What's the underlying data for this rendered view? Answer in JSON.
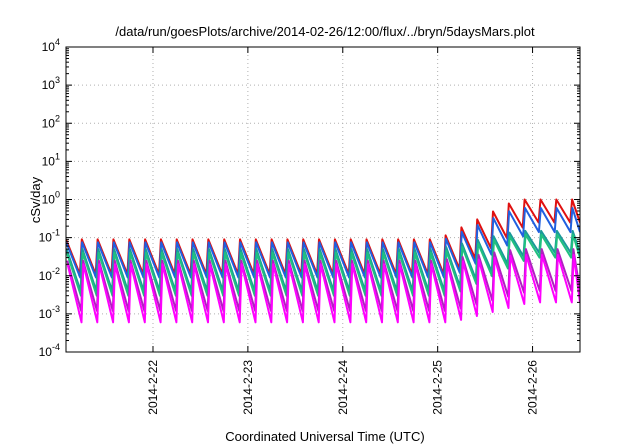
{
  "chart_data": {
    "type": "line",
    "title": "/data/run/goesPlots/archive/2014-02-26/12:00/flux/../bryn/5daysMars.plot",
    "xlabel": "Coordinated Universal Time (UTC)",
    "ylabel": "cSv/day",
    "yscale": "log",
    "ylim": [
      0.0001,
      10000
    ],
    "xlim": [
      "2014-02-21T02:00",
      "2014-02-26T12:00"
    ],
    "grid": true,
    "legend": "none",
    "x_ticks": [
      "2014-2-22",
      "2014-2-23",
      "2014-2-24",
      "2014-2-25",
      "2014-2-26"
    ],
    "y_ticks": [
      {
        "base": "10",
        "exp": "-4"
      },
      {
        "base": "10",
        "exp": "-3"
      },
      {
        "base": "10",
        "exp": "-2"
      },
      {
        "base": "10",
        "exp": "-1"
      },
      {
        "base": "10",
        "exp": "0"
      },
      {
        "base": "10",
        "exp": "1"
      },
      {
        "base": "10",
        "exp": "2"
      },
      {
        "base": "10",
        "exp": "3"
      },
      {
        "base": "10",
        "exp": "4"
      }
    ],
    "cycle_period_hours": 4,
    "series": [
      {
        "color": "#e01010",
        "peak_quiet": 0.09,
        "trough_quiet": 0.011,
        "peak_active": 1.0,
        "trough_active": 0.25
      },
      {
        "color": "#2060e0",
        "peak_quiet": 0.075,
        "trough_quiet": 0.009,
        "peak_active": 0.6,
        "trough_active": 0.14
      },
      {
        "color": "#1a9a9a",
        "peak_quiet": 0.05,
        "trough_quiet": 0.004,
        "peak_active": 0.15,
        "trough_active": 0.04
      },
      {
        "color": "#20c080",
        "peak_quiet": 0.04,
        "trough_quiet": 0.003,
        "peak_active": 0.12,
        "trough_active": 0.03
      },
      {
        "color": "#b020c0",
        "peak_quiet": 0.025,
        "trough_quiet": 0.0012,
        "peak_active": 0.05,
        "trough_active": 0.004
      },
      {
        "color": "#ff00ff",
        "peak_quiet": 0.02,
        "trough_quiet": 0.0006,
        "peak_active": 0.035,
        "trough_active": 0.002
      }
    ]
  }
}
